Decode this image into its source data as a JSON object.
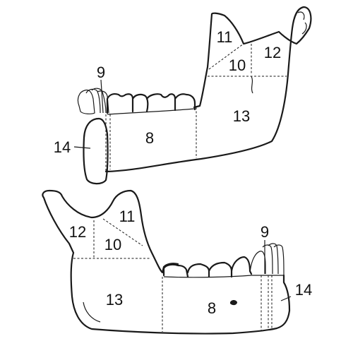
{
  "diagram": {
    "upper_view": {
      "labels": {
        "r8": "8",
        "r9": "9",
        "r10": "10",
        "r11": "11",
        "r12": "12",
        "r13": "13",
        "r14": "14"
      }
    },
    "lower_view": {
      "labels": {
        "r8": "8",
        "r9": "9",
        "r10": "10",
        "r11": "11",
        "r12": "12",
        "r13": "13",
        "r14": "14"
      }
    }
  }
}
